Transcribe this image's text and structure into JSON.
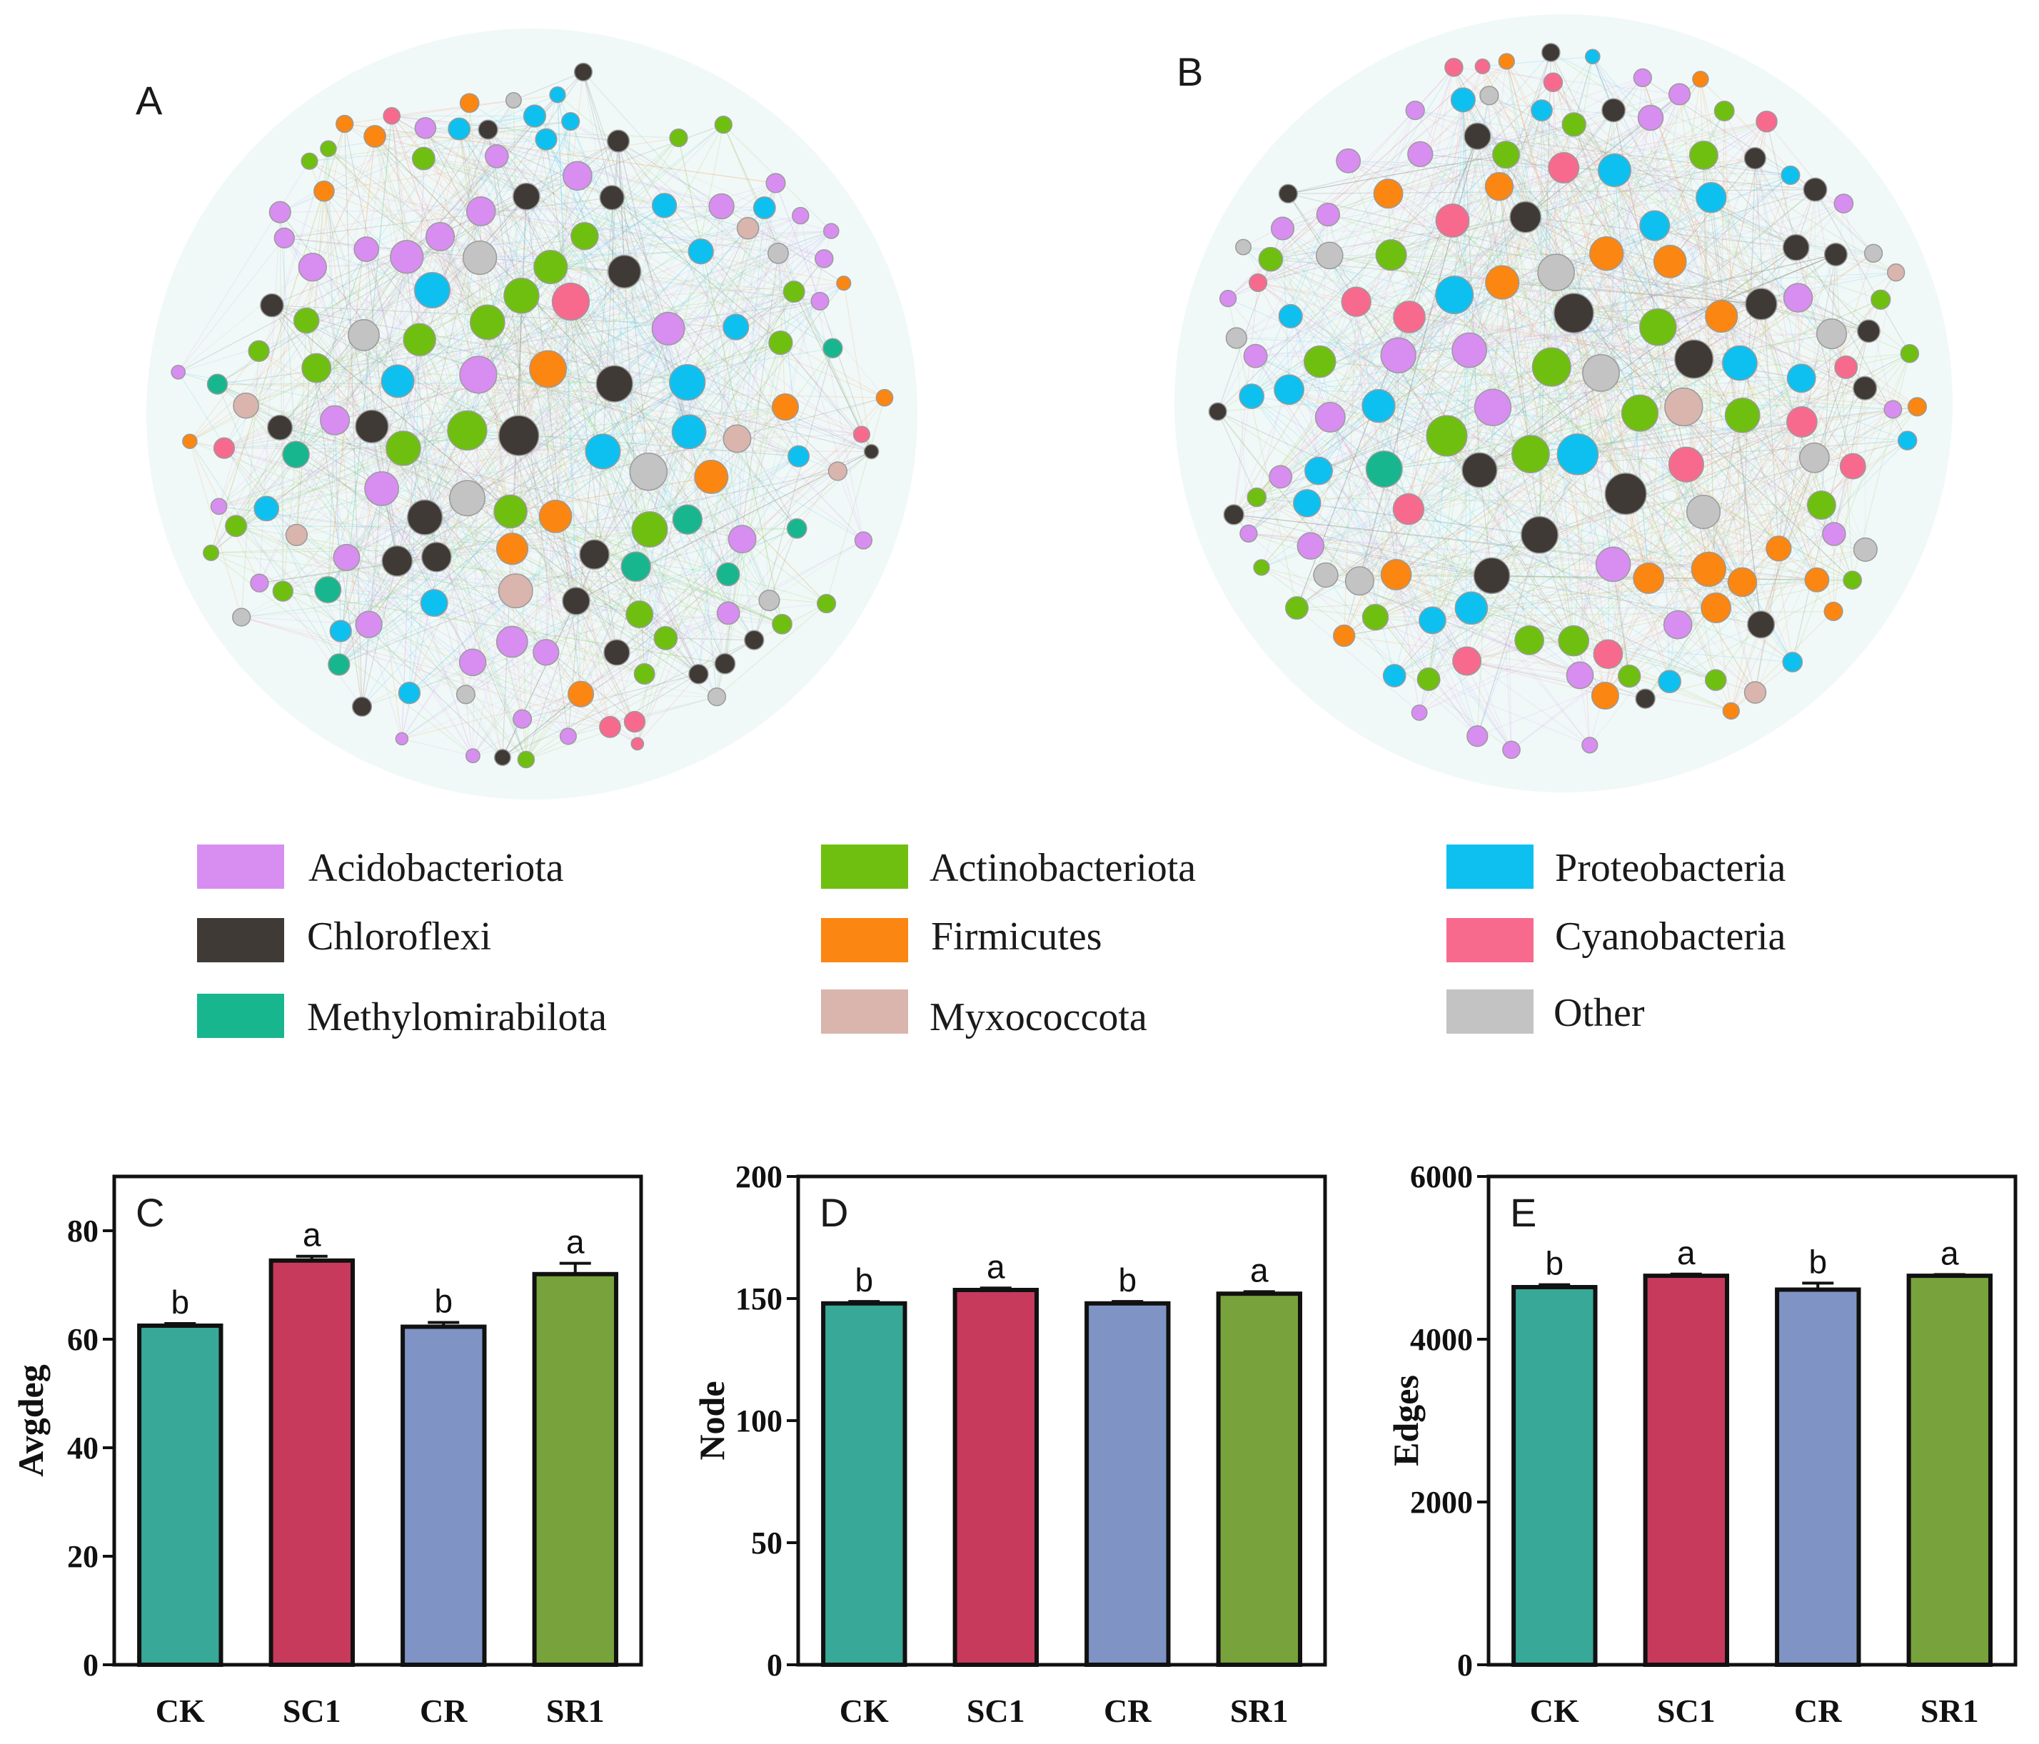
{
  "network_a": {
    "label": "A"
  },
  "network_b": {
    "label": "B"
  },
  "legend": [
    {
      "name": "Acidobacteriota",
      "color": "#d78ef0"
    },
    {
      "name": "Actinobacteriota",
      "color": "#6fbf10"
    },
    {
      "name": "Proteobacteria",
      "color": "#0ec0f0"
    },
    {
      "name": "Chloroflexi",
      "color": "#403a36"
    },
    {
      "name": "Firmicutes",
      "color": "#fb8611"
    },
    {
      "name": "Cyanobacteria",
      "color": "#f76a8e"
    },
    {
      "name": "Methylomirabilota",
      "color": "#18b68f"
    },
    {
      "name": "Myxococcota",
      "color": "#d9b5ae"
    },
    {
      "name": "Other",
      "color": "#c3c3c3"
    }
  ],
  "bar_colors": [
    "#38a898",
    "#c83a5c",
    "#7f93c4",
    "#78a23c"
  ],
  "chart_data": [
    {
      "type": "bar",
      "panel": "C",
      "title": "",
      "xlabel": "",
      "ylabel": "Avgdeg",
      "categories": [
        "CK",
        "SC1",
        "CR",
        "SR1"
      ],
      "values": [
        62.5,
        74.5,
        62.3,
        72
      ],
      "errors": [
        0.4,
        0.8,
        0.8,
        2
      ],
      "significance": [
        "b",
        "a",
        "b",
        "a"
      ],
      "ylim": [
        0,
        90
      ],
      "yticks": [
        0,
        20,
        40,
        60,
        80
      ]
    },
    {
      "type": "bar",
      "panel": "D",
      "title": "",
      "xlabel": "",
      "ylabel": "Node",
      "categories": [
        "CK",
        "SC1",
        "CR",
        "SR1"
      ],
      "values": [
        148,
        153.5,
        148,
        152
      ],
      "errors": [
        0.8,
        0.8,
        0.8,
        0.8
      ],
      "significance": [
        "b",
        "a",
        "b",
        "a"
      ],
      "ylim": [
        0,
        200
      ],
      "yticks": [
        0,
        50,
        100,
        150,
        200
      ]
    },
    {
      "type": "bar",
      "panel": "E",
      "title": "",
      "xlabel": "",
      "ylabel": "Edges",
      "categories": [
        "CK",
        "SC1",
        "CR",
        "SR1"
      ],
      "values": [
        4640,
        4780,
        4610,
        4780
      ],
      "errors": [
        30,
        20,
        80,
        15
      ],
      "significance": [
        "b",
        "a",
        "b",
        "a"
      ],
      "ylim": [
        0,
        6000
      ],
      "yticks": [
        0,
        2000,
        4000,
        6000
      ]
    }
  ]
}
